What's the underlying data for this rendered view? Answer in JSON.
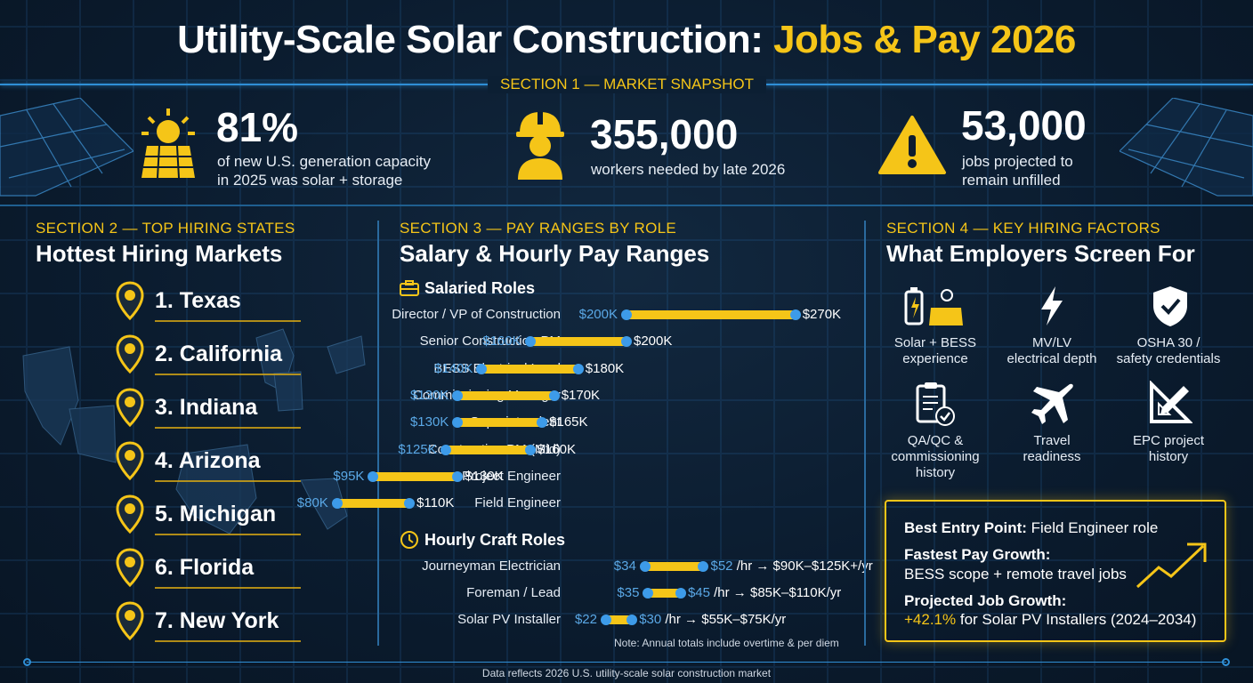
{
  "title": {
    "main": "Utility-Scale Solar Construction: ",
    "highlight": "Jobs & Pay 2026"
  },
  "section1": {
    "label": "SECTION 1 — MARKET SNAPSHOT",
    "stats": [
      {
        "value": "81%",
        "line1": "of new U.S. generation capacity",
        "line2": "in 2025 was solar + storage",
        "icon": "solar-panel-sun-icon"
      },
      {
        "value": "355,000",
        "line1": "workers needed by late 2026",
        "line2": "",
        "icon": "construction-worker-icon"
      },
      {
        "value": "53,000",
        "line1": "jobs projected to",
        "line2": "remain unfilled",
        "icon": "warning-icon"
      }
    ]
  },
  "section2": {
    "label": "SECTION 2 — TOP HIRING STATES",
    "heading": "Hottest Hiring Markets",
    "states": [
      "1. Texas",
      "2. California",
      "3. Indiana",
      "4. Arizona",
      "5. Michigan",
      "6. Florida",
      "7. New York"
    ]
  },
  "section3": {
    "label": "SECTION 3 — PAY RANGES BY ROLE",
    "heading": "Salary & Hourly Pay Ranges",
    "salaried_label": "Salaried Roles",
    "hourly_label": "Hourly Craft Roles",
    "salaried": [
      {
        "role": "Director / VP of Construction",
        "low": "$200K",
        "high": "$270K",
        "lo": 200,
        "hi": 270
      },
      {
        "role": "Senior Construction PM",
        "low": "$160K",
        "high": "$200K",
        "lo": 160,
        "hi": 200
      },
      {
        "role": "BESS Electrical Lead",
        "low": "$140K",
        "high": "$180K",
        "lo": 140,
        "hi": 180
      },
      {
        "role": "Commissioning Manager",
        "low": "$130K",
        "high": "$170K",
        "lo": 130,
        "hi": 170
      },
      {
        "role": "Superintendent",
        "low": "$130K",
        "high": "$165K",
        "lo": 130,
        "hi": 165
      },
      {
        "role": "Construction PM (Mid)",
        "low": "$125K",
        "high": "$160K",
        "lo": 125,
        "hi": 160
      },
      {
        "role": "Project Engineer",
        "low": "$95K",
        "high": "$130K",
        "lo": 95,
        "hi": 130
      },
      {
        "role": "Field Engineer",
        "low": "$80K",
        "high": "$110K",
        "lo": 80,
        "hi": 110
      }
    ],
    "hourly": [
      {
        "role": "Journeyman Electrician",
        "low": "$34",
        "high": "$52",
        "unit": "/hr",
        "annual": "$90K–$125K+/yr",
        "lo": 34,
        "hi": 52
      },
      {
        "role": "Foreman / Lead",
        "low": "$35",
        "high": "$45",
        "unit": "/hr",
        "annual": "$85K–$110K/yr",
        "lo": 35,
        "hi": 45
      },
      {
        "role": "Solar PV Installer",
        "low": "$22",
        "high": "$30",
        "unit": "/hr",
        "annual": "$55K–$75K/yr",
        "lo": 22,
        "hi": 30
      }
    ],
    "note": "Note: Annual totals include overtime & per diem"
  },
  "section4": {
    "label": "SECTION 4 — KEY HIRING FACTORS",
    "heading": "What Employers Screen For",
    "factors": [
      {
        "l1": "Solar + BESS",
        "l2": "experience",
        "l3": "",
        "icon": "battery-solar-icon"
      },
      {
        "l1": "MV/LV",
        "l2": "electrical depth",
        "l3": "",
        "icon": "lightning-icon"
      },
      {
        "l1": "OSHA 30 /",
        "l2": "safety credentials",
        "l3": "",
        "icon": "shield-check-icon"
      },
      {
        "l1": "QA/QC &",
        "l2": "commissioning",
        "l3": "history",
        "icon": "clipboard-check-icon"
      },
      {
        "l1": "Travel",
        "l2": "readiness",
        "l3": "",
        "icon": "airplane-icon"
      },
      {
        "l1": "EPC project",
        "l2": "history",
        "l3": "",
        "icon": "ruler-pencil-icon"
      }
    ],
    "callout": {
      "entry_label": "Best Entry Point:",
      "entry_value": " Field Engineer role",
      "growth_label": "Fastest Pay Growth:",
      "growth_value": "BESS scope + remote travel jobs",
      "proj_label": "Projected Job Growth:",
      "proj_pct": "+42.1%",
      "proj_value": " for Solar PV Installers (2024–2034)"
    }
  },
  "footer": "Data reflects 2026 U.S. utility-scale solar construction market",
  "colors": {
    "accent": "#f5c518",
    "blue": "#3d9be9",
    "bg": "#0a1b2d"
  }
}
